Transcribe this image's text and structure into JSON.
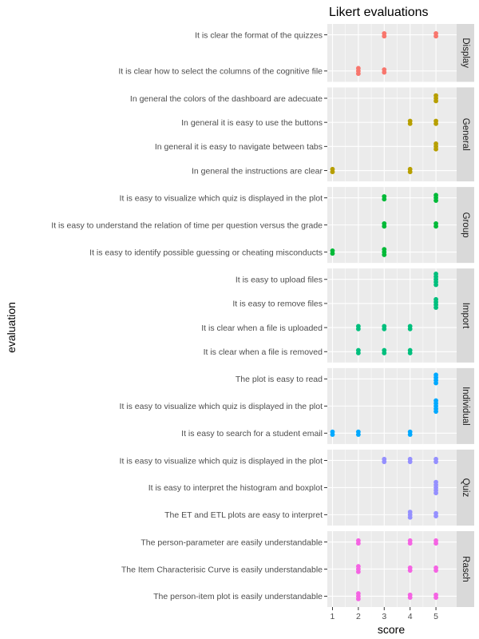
{
  "chart_data": {
    "type": "scatter",
    "title": "Likert evaluations",
    "xlabel": "score",
    "ylabel": "evaluation",
    "xlim": [
      0.8,
      5.8
    ],
    "xticks": [
      1,
      2,
      3,
      4,
      5
    ],
    "grid": true,
    "facets": [
      {
        "name": "Display",
        "color": "#F8766D",
        "items": [
          {
            "label": "It is clear the format of the quizzes",
            "scores": [
              3,
              3,
              5,
              5
            ]
          },
          {
            "label": "It is clear how to select the columns of the cognitive file",
            "scores": [
              2,
              2,
              2,
              3,
              3
            ]
          }
        ]
      },
      {
        "name": "General",
        "color": "#B79F00",
        "items": [
          {
            "label": "In general the colors of the dashboard are adecuate",
            "scores": [
              5,
              5,
              5
            ]
          },
          {
            "label": "In general it is easy to use the buttons",
            "scores": [
              4,
              4,
              5,
              5
            ]
          },
          {
            "label": "In general it is easy to navigate between tabs",
            "scores": [
              5,
              5,
              5
            ]
          },
          {
            "label": "In general the instructions are clear",
            "scores": [
              1,
              1,
              4,
              4
            ]
          }
        ]
      },
      {
        "name": "Group",
        "color": "#00BA38",
        "items": [
          {
            "label": "It is easy to visualize which quiz is displayed in the plot",
            "scores": [
              3,
              3,
              5,
              5,
              5
            ]
          },
          {
            "label": "It is easy to understand the relation of time per question versus the grade",
            "scores": [
              3,
              3,
              5,
              5
            ]
          },
          {
            "label": "It is easy to identify possible guessing or cheating misconducts",
            "scores": [
              1,
              1,
              3,
              3,
              3
            ]
          }
        ]
      },
      {
        "name": "Import",
        "color": "#00BF7D",
        "items": [
          {
            "label": "It is easy to upload files",
            "scores": [
              5,
              5,
              5,
              5,
              5
            ]
          },
          {
            "label": "It is easy to remove files",
            "scores": [
              5,
              5,
              5,
              5
            ]
          },
          {
            "label": "It is clear when a file is uploaded",
            "scores": [
              2,
              2,
              3,
              3,
              4,
              4
            ]
          },
          {
            "label": "It is clear when a file is removed",
            "scores": [
              2,
              2,
              3,
              3,
              4,
              4
            ]
          }
        ]
      },
      {
        "name": "Individual",
        "color": "#00A9FF",
        "items": [
          {
            "label": "The plot is easy to read",
            "scores": [
              5,
              5,
              5,
              5
            ]
          },
          {
            "label": "It is easy to visualize which quiz is displayed in the plot",
            "scores": [
              5,
              5,
              5,
              5,
              5
            ]
          },
          {
            "label": "It is easy to search for a student email",
            "scores": [
              1,
              1,
              2,
              2,
              4,
              4
            ]
          }
        ]
      },
      {
        "name": "Quiz",
        "color": "#9590FF",
        "items": [
          {
            "label": "It is easy to visualize which quiz is displayed in the plot",
            "scores": [
              3,
              3,
              4,
              4,
              5,
              5
            ]
          },
          {
            "label": "It is easy to interpret the histogram and boxplot",
            "scores": [
              5,
              5,
              5,
              5,
              5
            ]
          },
          {
            "label": "The ET and ETL plots are easy to interpret",
            "scores": [
              4,
              4,
              4,
              5,
              5
            ]
          }
        ]
      },
      {
        "name": "Rasch",
        "color": "#F564E3",
        "items": [
          {
            "label": "The person-parameter are easily understandable",
            "scores": [
              2,
              2,
              4,
              4,
              5,
              5
            ]
          },
          {
            "label": "The Item Characterisic Curve is easily understandable",
            "scores": [
              2,
              2,
              2,
              4,
              4,
              5,
              5
            ]
          },
          {
            "label": "The person-item plot is easily understandable",
            "scores": [
              2,
              2,
              2,
              4,
              4,
              5,
              5
            ]
          }
        ]
      }
    ]
  }
}
